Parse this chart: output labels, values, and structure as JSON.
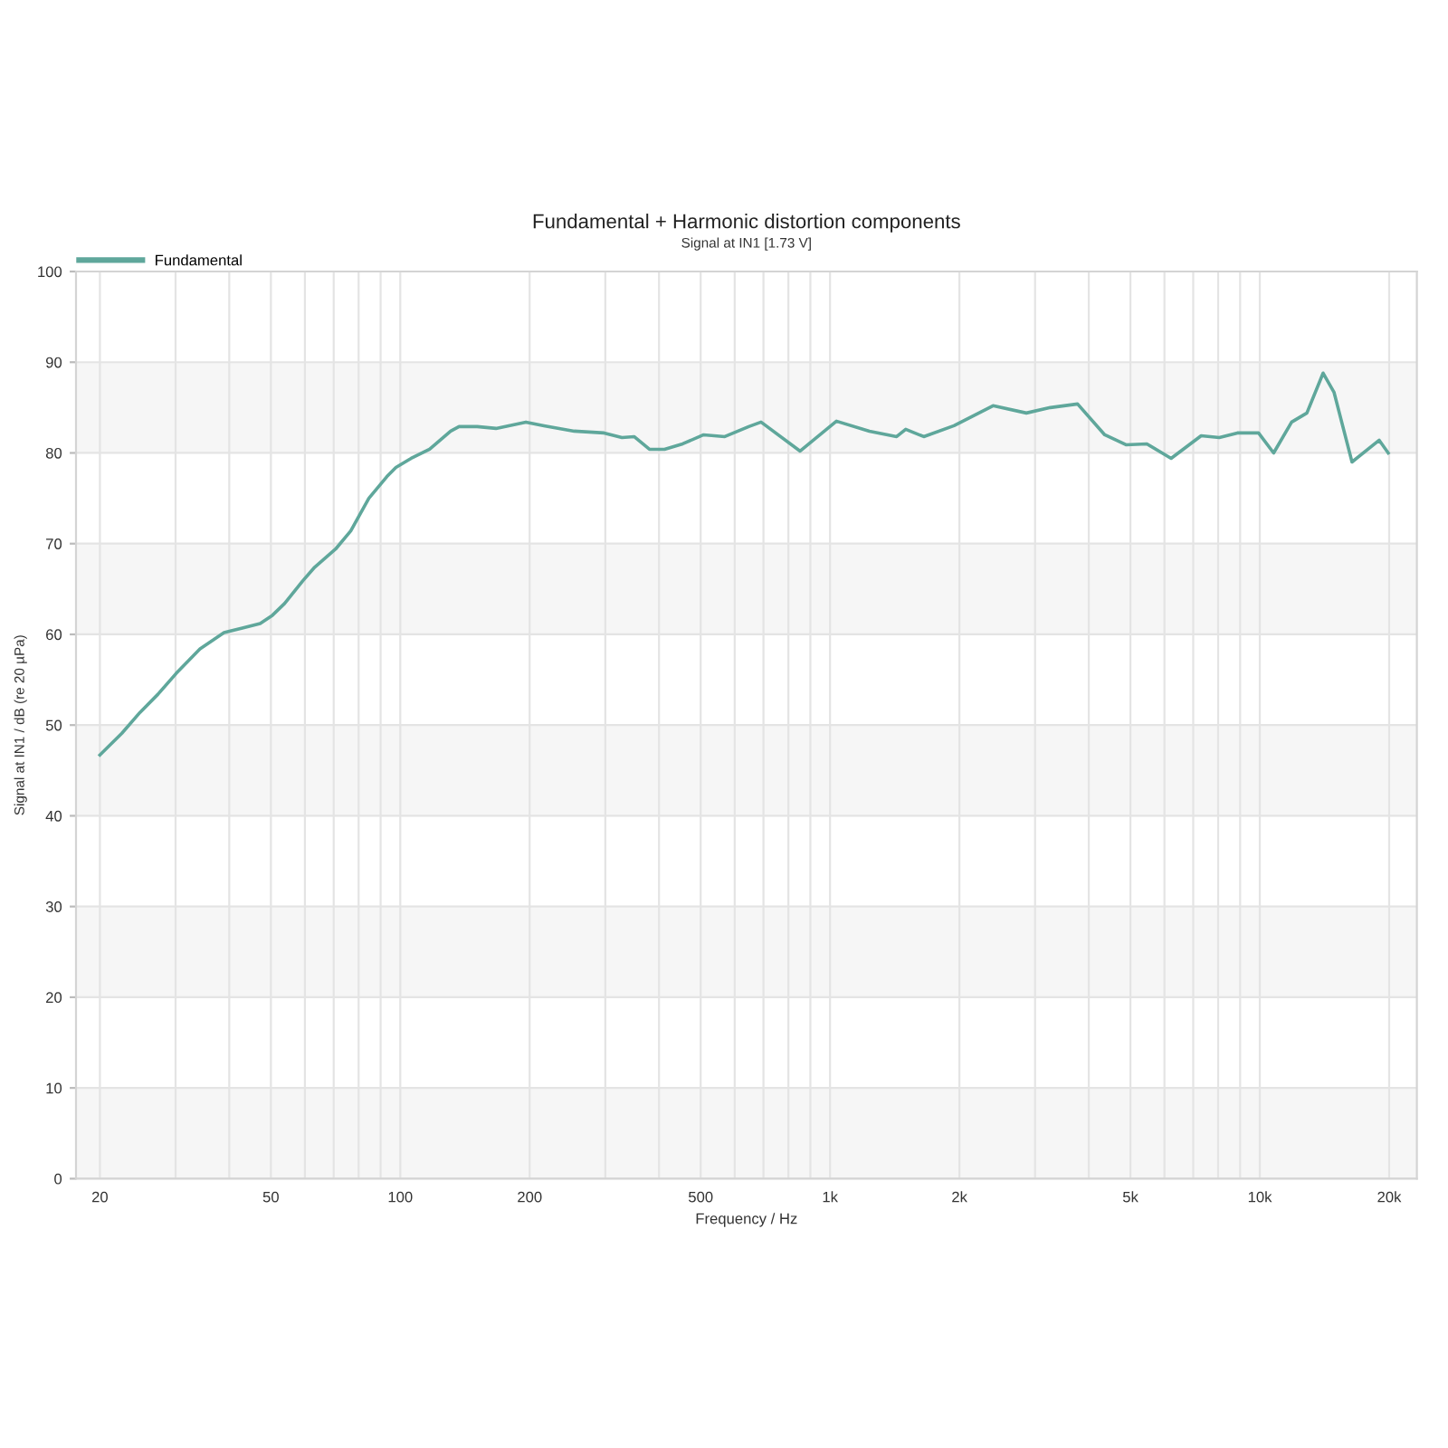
{
  "chart_data": {
    "type": "line",
    "title": "Fundamental + Harmonic distortion components",
    "subtitle": "Signal at IN1 [1.73 V]",
    "xlabel": "Frequency / Hz",
    "ylabel": "Signal at IN1 / dB (re 20 µPa)",
    "log": "x",
    "xlim": [
      17.6,
      23200
    ],
    "ylim": [
      0,
      100
    ],
    "xticks": [
      20,
      {
        "value": 30,
        "label": null
      },
      {
        "value": 40,
        "label": null
      },
      50,
      {
        "value": 60,
        "label": null
      },
      {
        "value": 70,
        "label": null
      },
      {
        "value": 80,
        "label": null
      },
      {
        "value": 90,
        "label": null
      },
      100,
      200,
      {
        "value": 300,
        "label": null
      },
      {
        "value": 400,
        "label": null
      },
      500,
      {
        "value": 600,
        "label": null
      },
      {
        "value": 700,
        "label": null
      },
      {
        "value": 800,
        "label": null
      },
      {
        "value": 900,
        "label": null
      },
      {
        "value": 1000,
        "label": "1k"
      },
      {
        "value": 2000,
        "label": "2k"
      },
      {
        "value": 3000,
        "label": null
      },
      {
        "value": 4000,
        "label": null
      },
      {
        "value": 5000,
        "label": "5k"
      },
      {
        "value": 6000,
        "label": null
      },
      {
        "value": 7000,
        "label": null
      },
      {
        "value": 8000,
        "label": null
      },
      {
        "value": 9000,
        "label": null
      },
      {
        "value": 10000,
        "label": "10k"
      },
      {
        "value": 20000,
        "label": "20k"
      }
    ],
    "yticks": [
      0,
      10,
      20,
      30,
      40,
      50,
      60,
      70,
      80,
      90,
      100
    ],
    "grid": true,
    "legend": "top left",
    "line_style": "solid",
    "marker": "none",
    "bands": [
      {
        "axis": "y",
        "from": 0,
        "to": 10,
        "color": "#f6f6f6"
      },
      {
        "axis": "y",
        "from": 20,
        "to": 30,
        "color": "#f6f6f6"
      },
      {
        "axis": "y",
        "from": 40,
        "to": 50,
        "color": "#f6f6f6"
      },
      {
        "axis": "y",
        "from": 60,
        "to": 70,
        "color": "#f6f6f6"
      },
      {
        "axis": "y",
        "from": 80,
        "to": 90,
        "color": "#f6f6f6"
      }
    ],
    "series": [
      {
        "name": "Fundamental",
        "color": "#5fa79b",
        "x": [
          20,
          22.5,
          24.8,
          27.3,
          30.1,
          34.2,
          38.9,
          42.9,
          47.2,
          50.4,
          53.8,
          59.3,
          63.2,
          70.7,
          76.7,
          84.5,
          93.1,
          97.7,
          106,
          117,
          131,
          137,
          151,
          167,
          196,
          216,
          254,
          298,
          328,
          350,
          380,
          412,
          454,
          508,
          569,
          647,
          691,
          852,
          1035,
          1235,
          1429,
          1500,
          1652,
          1943,
          2395,
          2863,
          3256,
          3767,
          4357,
          4882,
          5461,
          6218,
          7304,
          8050,
          8867,
          9933,
          10770,
          11860,
          12870,
          14040,
          14880,
          16390,
          18960,
          19900
        ],
        "values": [
          46.7,
          49.1,
          51.4,
          53.4,
          55.7,
          58.4,
          60.2,
          60.7,
          61.2,
          62.1,
          63.4,
          65.9,
          67.4,
          69.4,
          71.4,
          75.0,
          77.4,
          78.4,
          79.4,
          80.4,
          82.4,
          82.9,
          82.9,
          82.7,
          83.4,
          83.0,
          82.4,
          82.2,
          81.7,
          81.8,
          80.4,
          80.4,
          81.0,
          82.0,
          81.8,
          82.9,
          83.4,
          80.2,
          83.5,
          82.4,
          81.8,
          82.6,
          81.8,
          83.0,
          85.2,
          84.4,
          85.0,
          85.4,
          82.0,
          80.9,
          81.0,
          79.4,
          81.9,
          81.7,
          82.2,
          82.2,
          80.0,
          83.4,
          84.4,
          88.8,
          86.7,
          79.0,
          81.4,
          80.0
        ]
      }
    ]
  }
}
